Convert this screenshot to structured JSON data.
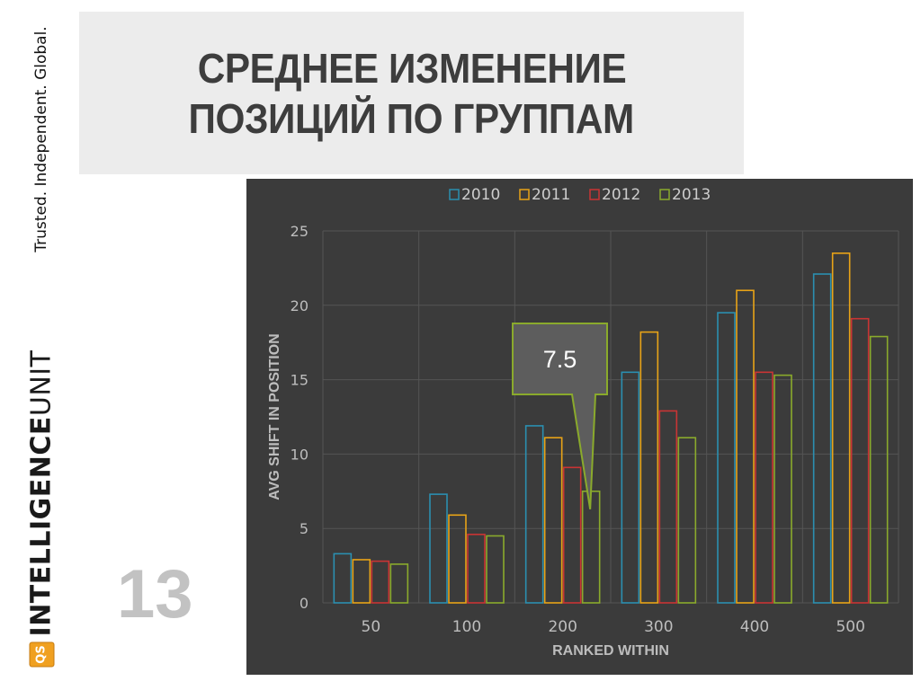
{
  "slide": {
    "tagline": "Trusted. Independent. Global.",
    "title_lines": [
      "СРЕДНЕЕ ИЗМЕНЕНИЕ",
      "ПОЗИЦИЙ ПО ГРУППАМ"
    ],
    "brand": {
      "logo_text": "QS",
      "word_bold": "INTELLIGENCE",
      "word_light": "UNIT"
    },
    "page_number": "13"
  },
  "chart_data": {
    "type": "bar",
    "categories": [
      "50",
      "100",
      "200",
      "300",
      "400",
      "500"
    ],
    "series": [
      {
        "name": "2010",
        "color": "#2b8fb0",
        "values": [
          3.3,
          7.3,
          11.9,
          15.5,
          19.5,
          22.1
        ]
      },
      {
        "name": "2011",
        "color": "#e8a317",
        "values": [
          2.9,
          5.9,
          11.1,
          18.2,
          21.0,
          23.5
        ]
      },
      {
        "name": "2012",
        "color": "#c93434",
        "values": [
          2.8,
          4.6,
          9.1,
          12.9,
          15.5,
          19.1
        ]
      },
      {
        "name": "2013",
        "color": "#8aaa2c",
        "values": [
          2.6,
          4.5,
          7.5,
          11.1,
          15.3,
          17.9
        ]
      }
    ],
    "xlabel": "RANKED WITHIN",
    "ylabel": "AVG SHIFT IN POSITION",
    "ylim": [
      0,
      25
    ],
    "yticks": [
      0,
      5,
      10,
      15,
      20,
      25
    ],
    "grid": true,
    "legend_position": "top",
    "callout": {
      "text": "7.5",
      "series": "2013",
      "category": "200",
      "value": 7.5
    }
  }
}
